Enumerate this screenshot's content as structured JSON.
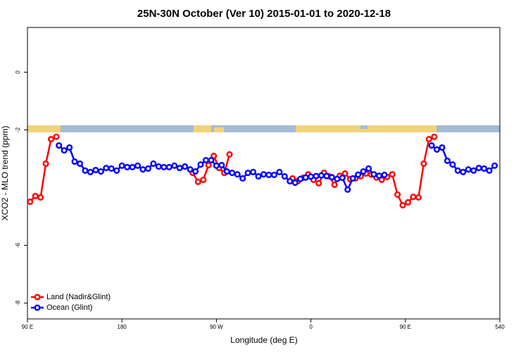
{
  "chart_data": {
    "type": "line",
    "title": "25N-30N October (Ver 10)   2015-01-01 to 2020-12-18",
    "xlabel": "Longitude (deg E)",
    "ylabel": "XCO2 - MLO trend (ppm)",
    "xlim": [
      90,
      540
    ],
    "xticks": [
      {
        "value": 90,
        "label": "90 E"
      },
      180,
      {
        "value": 270,
        "label": "90 W"
      },
      {
        "value": 360,
        "label": "0"
      },
      {
        "value": 450,
        "label": "90 E"
      },
      540
    ],
    "ylim": [
      -8.55,
      1.55
    ],
    "yticks": [
      0,
      -2,
      -6,
      -8
    ],
    "legend": "bottom-left",
    "series": [
      {
        "name": "Land (Nadir&Glint)",
        "color": "#ff0000",
        "x": [
          92.5,
          97.5,
          102.5,
          107.5,
          112.5,
          117.5,
          180,
          247.5,
          252.5,
          257.5,
          262.5,
          267.5,
          272.5,
          277.5,
          282.5,
          310,
          342.5,
          347.5,
          352.5,
          357.5,
          362.5,
          367.5,
          372.5,
          377.5,
          382.5,
          387.5,
          392.5,
          397.5,
          402.5,
          407.5,
          412.5,
          417.5,
          422.5,
          427.5,
          432.5,
          437.5,
          442.5,
          447.5,
          452.5,
          457.5,
          462.5,
          467.5,
          472.5,
          477.5
        ],
        "values": [
          -4.49,
          -4.29,
          -4.34,
          -3.17,
          -2.32,
          -2.24,
          null,
          -3.49,
          -3.8,
          -3.73,
          -3.22,
          -2.9,
          -3.32,
          -3.49,
          -2.85,
          null,
          -3.68,
          -3.78,
          -3.66,
          -3.54,
          -3.73,
          -3.85,
          -3.49,
          -3.61,
          -3.9,
          -3.59,
          -3.51,
          -3.71,
          -3.68,
          -3.6,
          -3.51,
          -3.55,
          -3.65,
          -3.73,
          -3.63,
          -3.54,
          -4.24,
          -4.61,
          -4.51,
          -4.32,
          -4.34,
          -3.17,
          -2.32,
          -2.24
        ]
      },
      {
        "name": "Ocean (Glint)",
        "color": "#0000ff",
        "x": [
          120,
          125,
          130,
          135,
          140,
          145,
          150,
          155,
          160,
          165,
          170,
          175,
          180,
          185,
          190,
          195,
          200,
          205,
          210,
          215,
          220,
          225,
          230,
          235,
          240,
          245,
          250,
          255,
          260,
          265,
          270,
          275,
          280,
          285,
          290,
          295,
          300,
          305,
          310,
          315,
          320,
          325,
          330,
          335,
          340,
          345,
          350,
          355,
          360,
          365,
          370,
          375,
          380,
          385,
          390,
          395,
          400,
          405,
          410,
          415,
          420,
          425,
          430,
          452.5,
          475,
          480,
          485,
          490,
          495,
          500,
          505,
          510,
          515,
          520,
          525,
          530,
          535
        ],
        "values": [
          -2.54,
          -2.71,
          -2.61,
          -3.1,
          -3.17,
          -3.41,
          -3.46,
          -3.39,
          -3.44,
          -3.32,
          -3.34,
          -3.41,
          -3.24,
          -3.29,
          -3.29,
          -3.24,
          -3.37,
          -3.34,
          -3.17,
          -3.27,
          -3.29,
          -3.29,
          -3.24,
          -3.32,
          -3.27,
          -3.37,
          -3.44,
          -3.2,
          -3.05,
          -3.05,
          -3.24,
          -3.22,
          -3.44,
          -3.49,
          -3.54,
          -3.68,
          -3.49,
          -3.46,
          -3.61,
          -3.54,
          -3.56,
          -3.56,
          -3.46,
          -3.61,
          -3.78,
          -3.83,
          -3.7,
          -3.65,
          -3.62,
          -3.6,
          -3.58,
          -3.6,
          -3.64,
          -3.7,
          -3.66,
          -4.07,
          -3.68,
          -3.55,
          -3.44,
          -3.34,
          -3.54,
          -3.59,
          -3.56,
          null,
          -2.54,
          -2.68,
          -2.61,
          -3.07,
          -3.2,
          -3.41,
          -3.46,
          -3.37,
          -3.41,
          -3.32,
          -3.34,
          -3.41,
          -3.24
        ]
      }
    ]
  }
}
